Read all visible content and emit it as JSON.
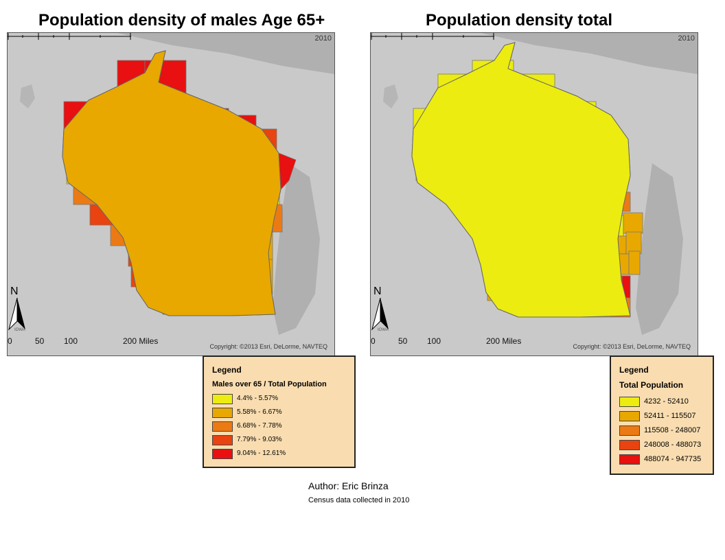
{
  "maps": {
    "left": {
      "title": "Population density of males Age 65+",
      "year": "2010",
      "copyright": "Copyright: ©2013 Esri, DeLorme, NAVTEQ",
      "north": "N",
      "scale_labels": [
        "0",
        "50",
        "100",
        "200 Miles"
      ],
      "region_label": "IOWA",
      "legend": {
        "title": "Legend",
        "field": "Males over 65 / Total Population",
        "classes": [
          {
            "label": "4.4% - 5.57%",
            "color": "#ecec10"
          },
          {
            "label": "5.58% - 6.67%",
            "color": "#e8a800"
          },
          {
            "label": "6.68% - 7.78%",
            "color": "#ec7a14"
          },
          {
            "label": "7.79% - 9.03%",
            "color": "#e84310"
          },
          {
            "label": "9.04% - 12.61%",
            "color": "#e81010"
          }
        ]
      }
    },
    "right": {
      "title": "Population density total",
      "year": "2010",
      "copyright": "Copyright: ©2013 Esri, DeLorme, NAVTEQ",
      "north": "N",
      "scale_labels": [
        "0",
        "50",
        "100",
        "200 Miles"
      ],
      "region_label": "IOWA",
      "legend": {
        "title": "Legend",
        "field": "Total Population",
        "classes": [
          {
            "label": "4232 - 52410",
            "color": "#ecec10"
          },
          {
            "label": "52411 - 115507",
            "color": "#e8a800"
          },
          {
            "label": "115508 - 248007",
            "color": "#ec7a14"
          },
          {
            "label": "248008 - 488073",
            "color": "#e84310"
          },
          {
            "label": "488074 - 947735",
            "color": "#e81010"
          }
        ]
      }
    }
  },
  "footer": {
    "author": "Author: Eric Brinza",
    "note": "Census data collected in 2010"
  }
}
